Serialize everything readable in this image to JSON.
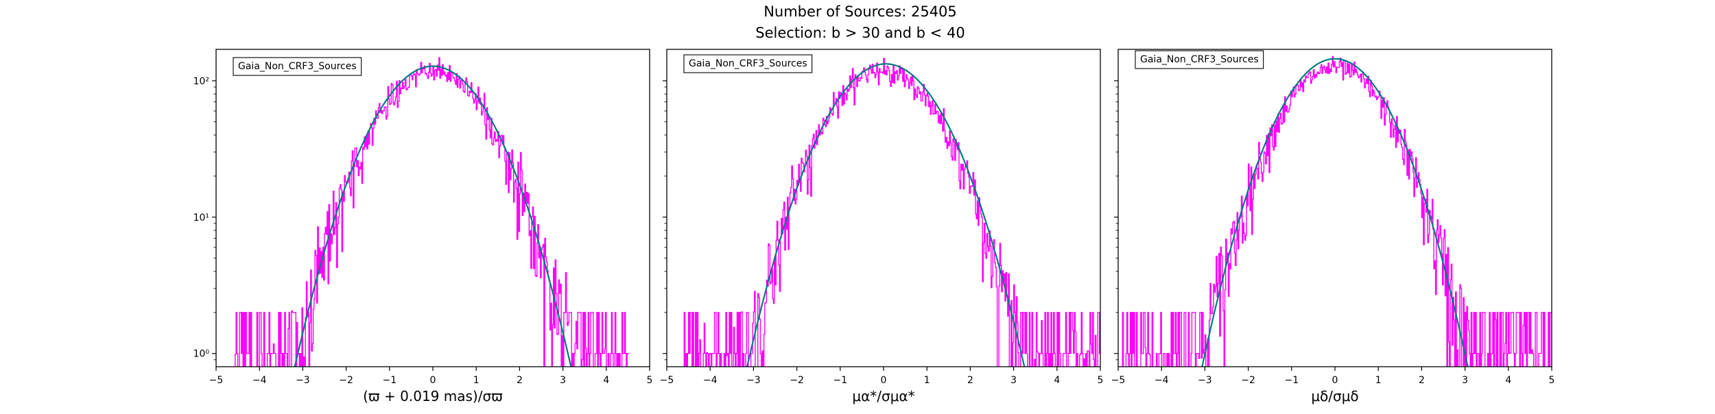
{
  "suptitle": {
    "line1": "Number of Sources: 25405",
    "line2": "Selection: b > 30 and b < 40"
  },
  "colors": {
    "histogram": "#ff00ff",
    "fit_curve": "#007b80",
    "frame": "#000000"
  },
  "chart_data": [
    {
      "type": "line",
      "title": "",
      "legend": "Gaia_Non_CRF3_Sources",
      "legend_position": "top-left",
      "xlabel": "(ϖ + 0.019 mas)/σϖ",
      "xlim": [
        -5,
        5
      ],
      "ylim": [
        0.8,
        170
      ],
      "yscale": "log",
      "grid": false,
      "x_ticks": [
        "−5",
        "−4",
        "−3",
        "−2",
        "−1",
        "0",
        "1",
        "2",
        "3",
        "4",
        "5"
      ],
      "y_ticks": [
        {
          "value": 1,
          "label": "10⁰"
        },
        {
          "value": 10,
          "label": "10¹"
        },
        {
          "value": 100,
          "label": "10²"
        }
      ],
      "series": [
        {
          "kind": "histogram-step",
          "color": "#ff00ff",
          "bin_width": 0.02,
          "x_range": [
            -4.6,
            4.5
          ],
          "peak": 118,
          "sigma": 1.0,
          "center": 0.0
        },
        {
          "kind": "gaussian-fit",
          "color": "#007b80",
          "amplitude": 128,
          "mean": 0.0,
          "sigma": 1.0,
          "x_range": [
            -3.6,
            3.6
          ]
        }
      ]
    },
    {
      "type": "line",
      "title": "",
      "legend": "Gaia_Non_CRF3_Sources",
      "legend_position": "top-left",
      "xlabel": "μα*/σμα*",
      "xlim": [
        -5,
        5
      ],
      "ylim": [
        0.8,
        170
      ],
      "yscale": "log",
      "grid": false,
      "x_ticks": [
        "−5",
        "−4",
        "−3",
        "−2",
        "−1",
        "0",
        "1",
        "2",
        "3",
        "4",
        "5"
      ],
      "y_ticks": [
        {
          "value": 1,
          "label": ""
        },
        {
          "value": 10,
          "label": ""
        },
        {
          "value": 100,
          "label": ""
        }
      ],
      "series": [
        {
          "kind": "histogram-step",
          "color": "#ff00ff",
          "bin_width": 0.02,
          "x_range": [
            -4.6,
            5.0
          ],
          "peak": 120,
          "sigma": 1.0,
          "center": 0.0
        },
        {
          "kind": "gaussian-fit",
          "color": "#007b80",
          "amplitude": 133,
          "mean": 0.05,
          "sigma": 1.0,
          "x_range": [
            -3.6,
            3.6
          ]
        }
      ]
    },
    {
      "type": "line",
      "title": "",
      "legend": "Gaia_Non_CRF3_Sources",
      "legend_position": "top-left",
      "xlabel": "μδ/σμδ",
      "xlim": [
        -5,
        5
      ],
      "ylim": [
        0.8,
        170
      ],
      "yscale": "log",
      "grid": false,
      "x_ticks": [
        "−5",
        "−4",
        "−3",
        "−2",
        "−1",
        "0",
        "1",
        "2",
        "3",
        "4",
        "5"
      ],
      "y_ticks": [
        {
          "value": 1,
          "label": ""
        },
        {
          "value": 10,
          "label": ""
        },
        {
          "value": 100,
          "label": ""
        }
      ],
      "series": [
        {
          "kind": "histogram-step",
          "color": "#ff00ff",
          "bin_width": 0.02,
          "x_range": [
            -4.9,
            5.0
          ],
          "peak": 125,
          "sigma": 0.97,
          "center": 0.0
        },
        {
          "kind": "gaussian-fit",
          "color": "#007b80",
          "amplitude": 145,
          "mean": 0.0,
          "sigma": 0.95,
          "x_range": [
            -3.6,
            3.6
          ]
        }
      ]
    }
  ]
}
